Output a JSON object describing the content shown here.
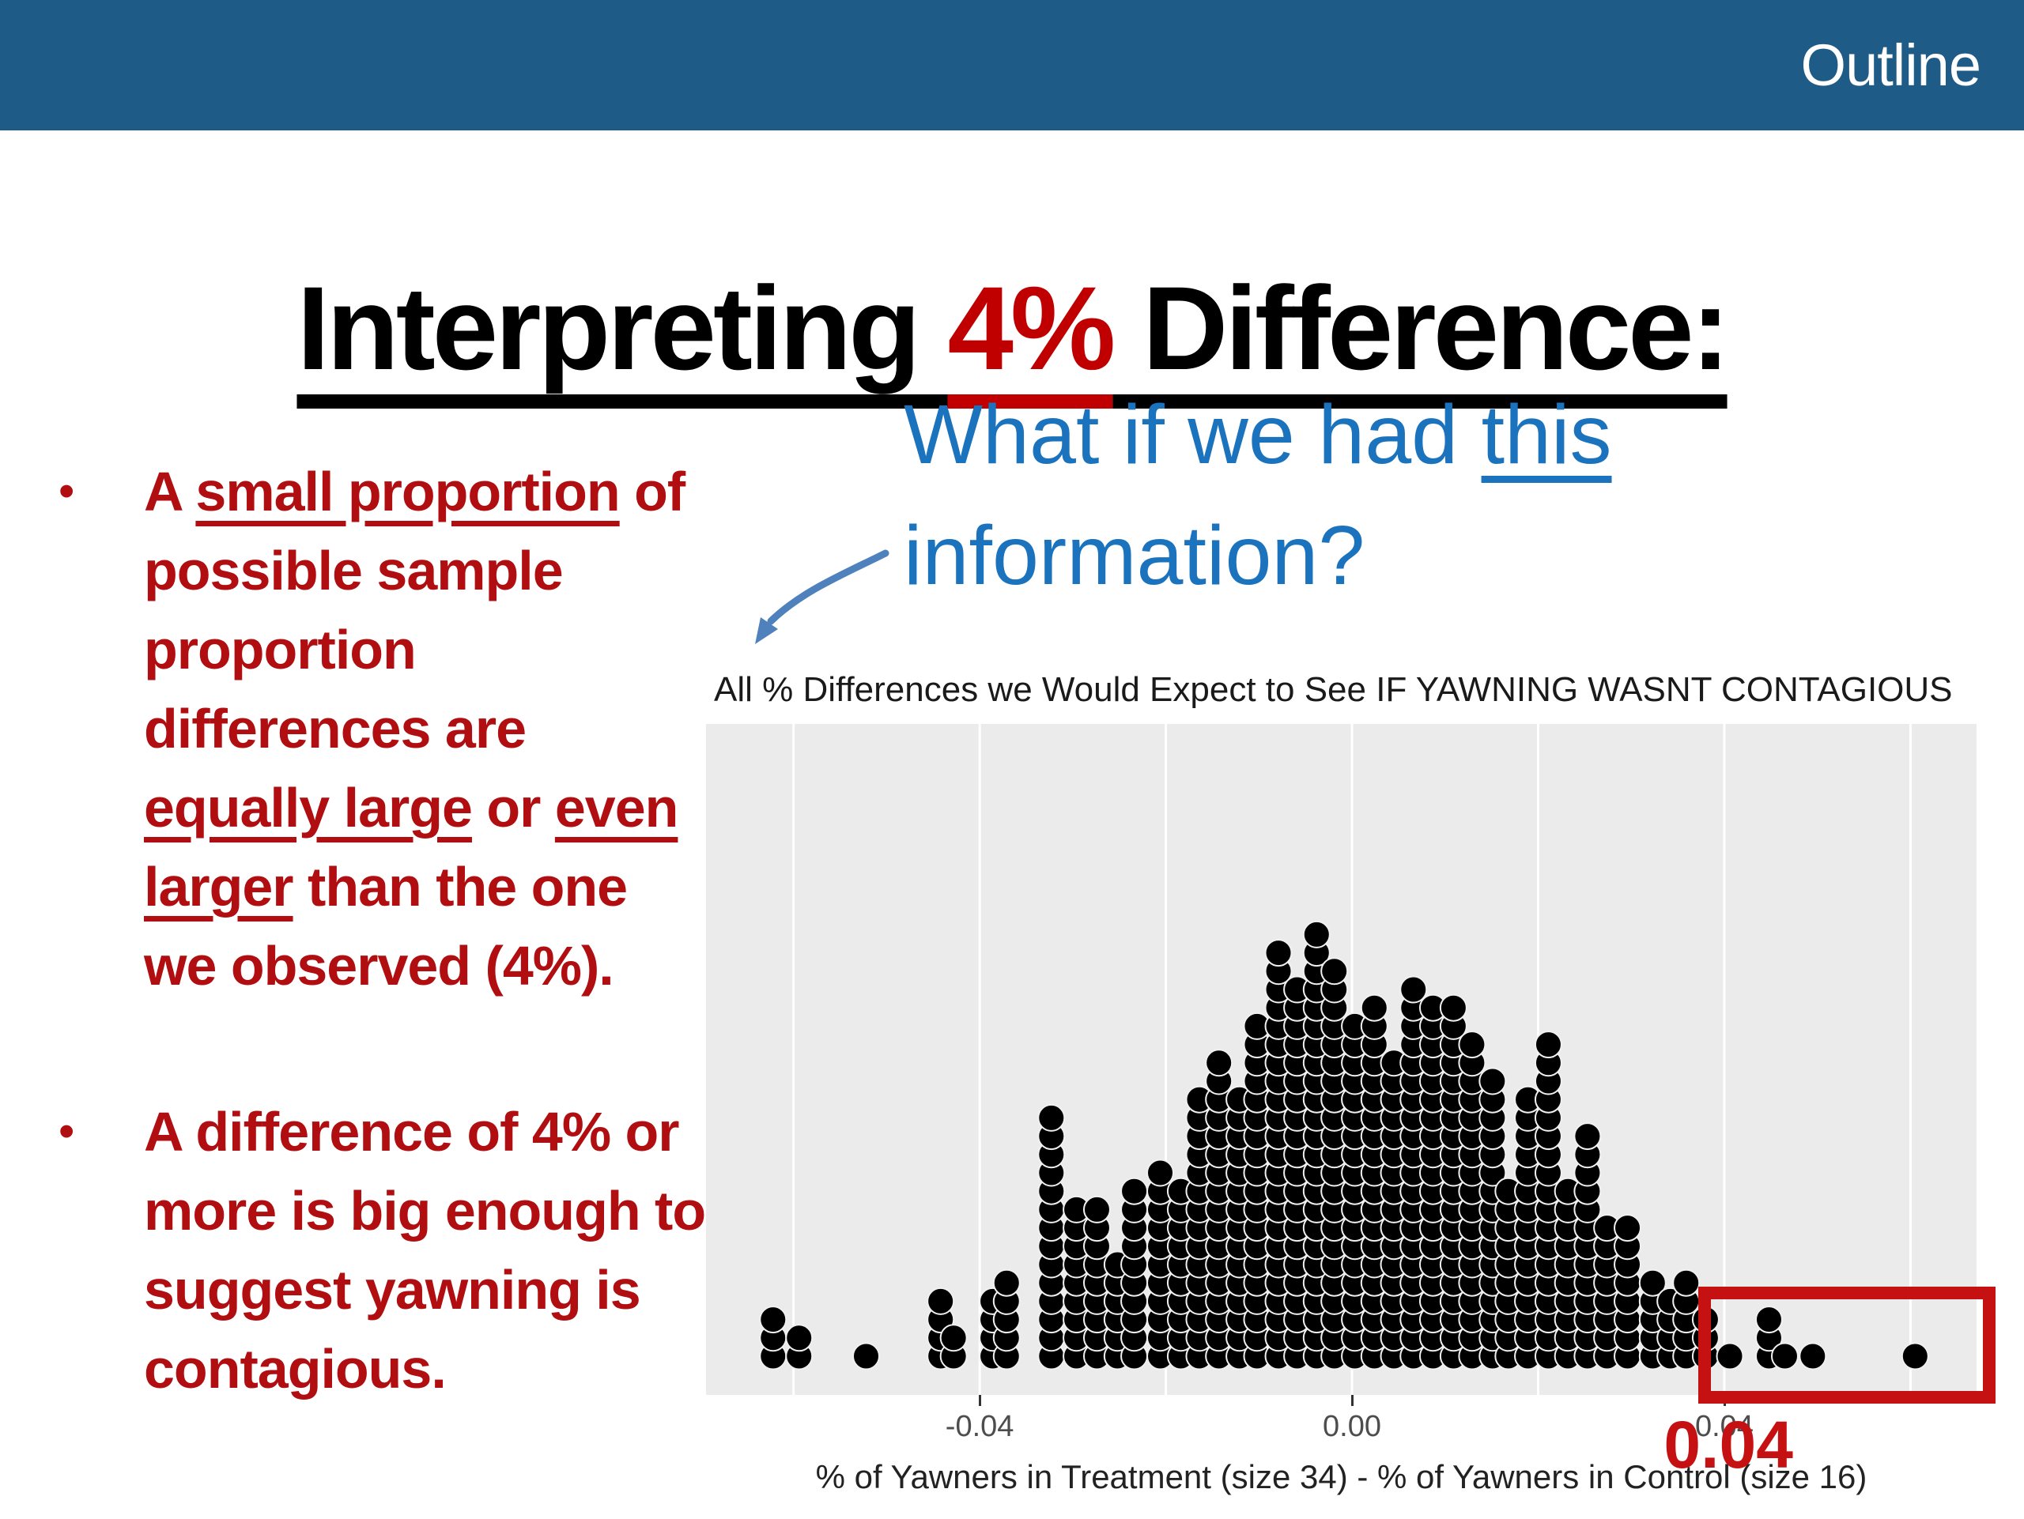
{
  "header": {
    "label": "Outline",
    "bg_color": "#1e5c87",
    "text_color": "#ffffff"
  },
  "title": {
    "pre": "Interpreting ",
    "highlight": "4%",
    "post": " Difference:",
    "text_color": "#000000",
    "highlight_color": "#c00000"
  },
  "question": {
    "line1_pre": "What if we had ",
    "line1_underlined": "this",
    "line2": "information?",
    "color": "#1b73be"
  },
  "bullets": {
    "marker": "•",
    "color": "#b00e10",
    "items": [
      {
        "lines": [
          [
            {
              "t": "A "
            },
            {
              "t": "small proportion",
              "u": true
            },
            {
              "t": " of"
            }
          ],
          [
            {
              "t": "possible sample"
            }
          ],
          [
            {
              "t": "proportion"
            }
          ],
          [
            {
              "t": "differences are"
            }
          ],
          [
            {
              "t": "equally large",
              "u": true
            },
            {
              "t": " or "
            },
            {
              "t": "even",
              "u": true
            }
          ],
          [
            {
              "t": "larger",
              "u": true
            },
            {
              "t": " than the one"
            }
          ],
          [
            {
              "t": "we observed (4%)."
            }
          ]
        ]
      },
      {
        "lines": [
          [
            {
              "t": "A difference of 4% or"
            }
          ],
          [
            {
              "t": "more is big enough to"
            }
          ],
          [
            {
              "t": "suggest yawning is"
            }
          ],
          [
            {
              "t": "contagious."
            }
          ]
        ]
      }
    ]
  },
  "chart_data": {
    "type": "dotplot",
    "title": "All % Differences we Would Expect to See IF YAWNING WASNT CONTAGIOUS",
    "xlabel": "% of Yawners in Treatment (size 34) - % of Yawners in Control (size 16)",
    "x_range": [
      -0.0694,
      0.0671
    ],
    "grid": true,
    "gridlines_x": [
      -0.06,
      -0.04,
      -0.02,
      0.0,
      0.02,
      0.04,
      0.06
    ],
    "ticks": [
      {
        "x": -0.04,
        "label": "-0.04"
      },
      {
        "x": 0.0,
        "label": "0.00"
      },
      {
        "x": 0.04,
        "label": "0.04"
      }
    ],
    "plot_bg": "#ebebeb",
    "grid_color": "#ffffff",
    "dot_color": "#000000",
    "tick_color": "#4d4d4d",
    "columns": [
      {
        "x": -0.0622,
        "n": 3
      },
      {
        "x": -0.0594,
        "n": 2
      },
      {
        "x": -0.0522,
        "n": 1
      },
      {
        "x": -0.0442,
        "n": 4
      },
      {
        "x": -0.0428,
        "n": 2
      },
      {
        "x": -0.0386,
        "n": 4
      },
      {
        "x": -0.0371,
        "n": 5
      },
      {
        "x": -0.0323,
        "n": 14
      },
      {
        "x": -0.0296,
        "n": 9
      },
      {
        "x": -0.0274,
        "n": 9
      },
      {
        "x": -0.0252,
        "n": 6
      },
      {
        "x": -0.0234,
        "n": 10
      },
      {
        "x": -0.0206,
        "n": 11
      },
      {
        "x": -0.0184,
        "n": 10
      },
      {
        "x": -0.0164,
        "n": 15
      },
      {
        "x": -0.0143,
        "n": 17
      },
      {
        "x": -0.0121,
        "n": 15
      },
      {
        "x": -0.0102,
        "n": 19
      },
      {
        "x": -0.0079,
        "n": 23
      },
      {
        "x": -0.0059,
        "n": 21
      },
      {
        "x": -0.0038,
        "n": 24
      },
      {
        "x": -0.0019,
        "n": 22
      },
      {
        "x": 0.0003,
        "n": 19
      },
      {
        "x": 0.0024,
        "n": 20
      },
      {
        "x": 0.0045,
        "n": 17
      },
      {
        "x": 0.0066,
        "n": 21
      },
      {
        "x": 0.0087,
        "n": 20
      },
      {
        "x": 0.0109,
        "n": 20
      },
      {
        "x": 0.0129,
        "n": 18
      },
      {
        "x": 0.0151,
        "n": 16
      },
      {
        "x": 0.0168,
        "n": 10
      },
      {
        "x": 0.0189,
        "n": 15
      },
      {
        "x": 0.0211,
        "n": 18
      },
      {
        "x": 0.0232,
        "n": 10
      },
      {
        "x": 0.0253,
        "n": 13
      },
      {
        "x": 0.0274,
        "n": 8
      },
      {
        "x": 0.0296,
        "n": 8
      },
      {
        "x": 0.0323,
        "n": 5
      },
      {
        "x": 0.0342,
        "n": 4
      },
      {
        "x": 0.0359,
        "n": 5
      },
      {
        "x": 0.038,
        "n": 3
      },
      {
        "x": 0.0406,
        "n": 1
      },
      {
        "x": 0.0448,
        "n": 3
      },
      {
        "x": 0.0465,
        "n": 1
      },
      {
        "x": 0.0495,
        "n": 1
      },
      {
        "x": 0.0605,
        "n": 1
      }
    ],
    "annotations": {
      "highlight_box": {
        "x0": 0.0372,
        "x1": 0.0691,
        "color": "#c51111"
      },
      "label": {
        "text": "0.04",
        "x": 0.0335,
        "color": "#c51111"
      }
    }
  },
  "arrow": {
    "color": "#4f81bd"
  }
}
